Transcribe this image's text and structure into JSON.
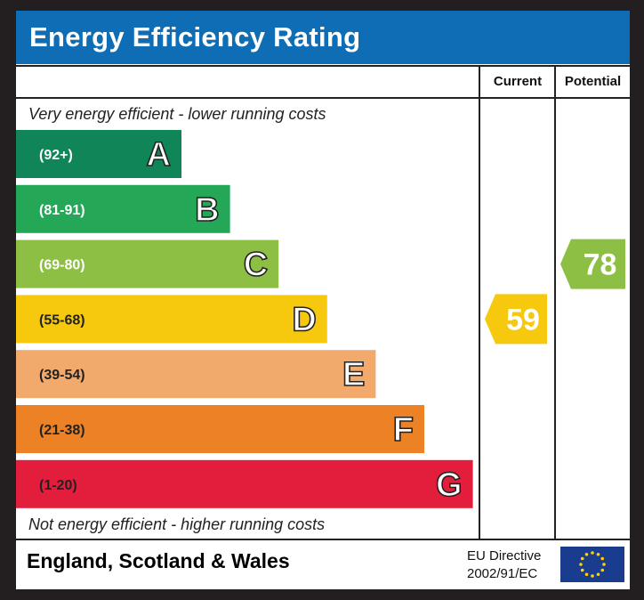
{
  "title": "Energy Efficiency Rating",
  "columns": {
    "current": "Current",
    "potential": "Potential"
  },
  "captions": {
    "top": "Very energy efficient - lower running costs",
    "bottom": "Not energy efficient - higher running costs"
  },
  "footer": {
    "region": "England, Scotland & Wales",
    "directive_line1": "EU Directive",
    "directive_line2": "2002/91/EC",
    "flag_icon": "eu-flag-icon"
  },
  "chart_data": {
    "type": "bar",
    "categories": [
      "A",
      "B",
      "C",
      "D",
      "E",
      "F",
      "G"
    ],
    "ranges": [
      "(92+)",
      "(81-91)",
      "(69-80)",
      "(55-68)",
      "(39-54)",
      "(21-38)",
      "(1-20)"
    ],
    "colors": [
      "#0f8558",
      "#24a857",
      "#8cbf44",
      "#f6c90f",
      "#f2aa6c",
      "#ec8126",
      "#e31d3c"
    ],
    "current": {
      "value": 59,
      "band": "D",
      "color": "#f6c90f"
    },
    "potential": {
      "value": 78,
      "band": "C",
      "color": "#8cbf44"
    }
  }
}
